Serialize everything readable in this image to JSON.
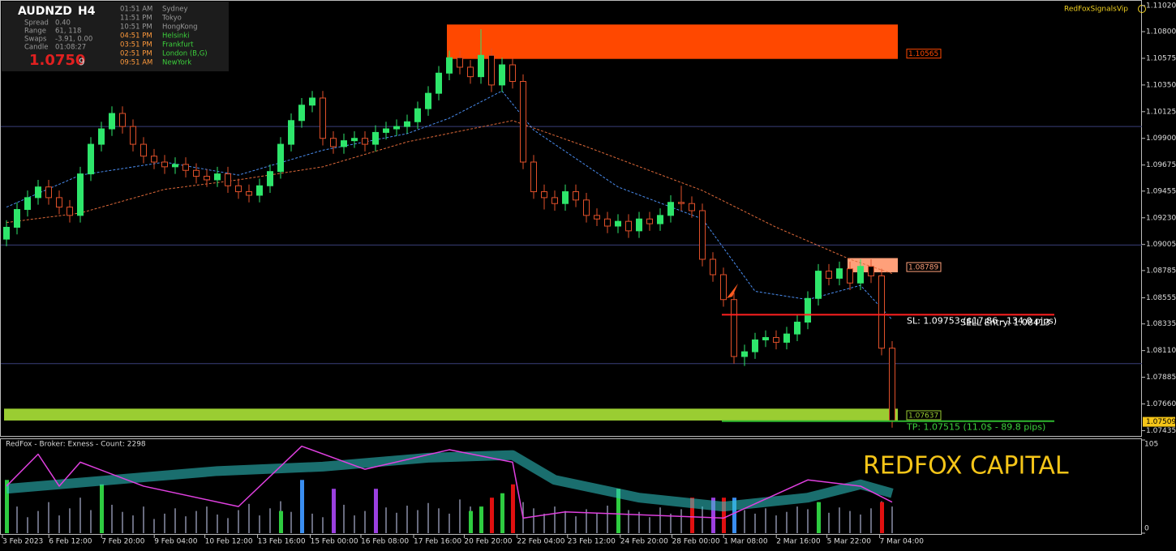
{
  "chart_data": {
    "type": "candlestick",
    "symbol": "AUDNZD",
    "timeframe": "H4",
    "watermark": "RedFoxSignalsVip",
    "brand": "REDFOX CAPITAL",
    "ylim": [
      1.0739,
      1.1106
    ],
    "yticks": [
      {
        "value": 1.1102,
        "label": "1.11020"
      },
      {
        "value": 1.108,
        "label": "1.10800"
      },
      {
        "value": 1.10575,
        "label": "1.10575"
      },
      {
        "value": 1.1035,
        "label": "1.10350"
      },
      {
        "value": 1.10125,
        "label": "1.10125"
      },
      {
        "value": 1.099,
        "label": "1.09900"
      },
      {
        "value": 1.09675,
        "label": "1.09675"
      },
      {
        "value": 1.09455,
        "label": "1.09455"
      },
      {
        "value": 1.0923,
        "label": "1.09230"
      },
      {
        "value": 1.09005,
        "label": "1.09005"
      },
      {
        "value": 1.08785,
        "label": "1.08785"
      },
      {
        "value": 1.08555,
        "label": "1.08555"
      },
      {
        "value": 1.08335,
        "label": "1.08335"
      },
      {
        "value": 1.0811,
        "label": "1.08110"
      },
      {
        "value": 1.07885,
        "label": "1.07885"
      },
      {
        "value": 1.0766,
        "label": "1.07660"
      },
      {
        "value": 1.07435,
        "label": "1.07435"
      }
    ],
    "levels": [
      1.1,
      1.09,
      1.08
    ],
    "current_price": {
      "value": 1.07509,
      "label": "1.07509"
    },
    "xticks": [
      {
        "value": 0,
        "label": "3 Feb 2023"
      },
      {
        "value": 4.4,
        "label": "6 Feb 12:00"
      },
      {
        "value": 9.4,
        "label": "7 Feb 20:00"
      },
      {
        "value": 14.4,
        "label": "9 Feb 04:00"
      },
      {
        "value": 19.2,
        "label": "10 Feb 12:00"
      },
      {
        "value": 24.2,
        "label": "13 Feb 16:00"
      },
      {
        "value": 29.2,
        "label": "15 Feb 00:00"
      },
      {
        "value": 34,
        "label": "16 Feb 08:00"
      },
      {
        "value": 39,
        "label": "17 Feb 16:00"
      },
      {
        "value": 43.8,
        "label": "20 Feb 20:00"
      },
      {
        "value": 48.8,
        "label": "22 Feb 04:00"
      },
      {
        "value": 53.6,
        "label": "23 Feb 12:00"
      },
      {
        "value": 58.6,
        "label": "24 Feb 20:00"
      },
      {
        "value": 63.5,
        "label": "28 Feb 00:00"
      },
      {
        "value": 68.4,
        "label": "1 Mar 08:00"
      },
      {
        "value": 73.4,
        "label": "2 Mar 16:00"
      },
      {
        "value": 78.2,
        "label": "5 Mar 22:00"
      },
      {
        "value": 83.2,
        "label": "7 Mar 04:00"
      }
    ],
    "colors": {
      "up": "#2ee66b",
      "down": "#e0502a"
    },
    "candles": [
      [
        1.0905,
        1.0921,
        1.0899,
        1.0915
      ],
      [
        1.0915,
        1.0936,
        1.0909,
        1.093
      ],
      [
        1.093,
        1.0946,
        1.0924,
        1.094
      ],
      [
        1.094,
        1.0955,
        1.0934,
        1.0949
      ],
      [
        1.0949,
        1.0955,
        1.0934,
        1.094
      ],
      [
        1.094,
        1.0946,
        1.0926,
        1.0932
      ],
      [
        1.0932,
        1.0938,
        1.0919,
        1.0925
      ],
      [
        1.0925,
        1.0966,
        1.0919,
        1.096
      ],
      [
        1.096,
        1.0991,
        1.0954,
        1.0985
      ],
      [
        1.0985,
        1.1004,
        1.0979,
        1.0998
      ],
      [
        1.0998,
        1.1017,
        1.0992,
        1.1011
      ],
      [
        1.1011,
        1.1017,
        1.0994,
        1.1
      ],
      [
        1.1,
        1.1006,
        1.0979,
        1.0985
      ],
      [
        1.0985,
        1.0991,
        1.0969,
        1.0975
      ],
      [
        1.0975,
        1.0981,
        1.0964,
        1.097
      ],
      [
        1.097,
        1.0976,
        1.096,
        1.0966
      ],
      [
        1.0966,
        1.0974,
        1.096,
        1.0968
      ],
      [
        1.0968,
        1.0974,
        1.0957,
        1.0963
      ],
      [
        1.0963,
        1.0969,
        1.0952,
        1.0958
      ],
      [
        1.0958,
        1.0964,
        1.0949,
        1.0955
      ],
      [
        1.0955,
        1.0966,
        1.0949,
        1.096
      ],
      [
        1.096,
        1.0966,
        1.0944,
        1.095
      ],
      [
        1.095,
        1.0956,
        1.0939,
        1.0945
      ],
      [
        1.0945,
        1.0951,
        1.0936,
        1.0942
      ],
      [
        1.0942,
        1.0956,
        1.0936,
        1.095
      ],
      [
        1.095,
        1.0968,
        1.0944,
        1.0962
      ],
      [
        1.0962,
        1.0991,
        1.0956,
        1.0985
      ],
      [
        1.0985,
        1.1011,
        1.0979,
        1.1005
      ],
      [
        1.1005,
        1.1024,
        1.0999,
        1.1018
      ],
      [
        1.1018,
        1.103,
        1.1012,
        1.1024
      ],
      [
        1.1024,
        1.103,
        1.0984,
        1.099
      ],
      [
        1.099,
        1.0996,
        1.0977,
        1.0983
      ],
      [
        1.0983,
        1.0994,
        1.0977,
        1.0988
      ],
      [
        1.0988,
        1.0996,
        1.0982,
        1.099
      ],
      [
        1.099,
        1.0996,
        1.0979,
        1.0985
      ],
      [
        1.0985,
        1.1001,
        1.0979,
        1.0995
      ],
      [
        1.0995,
        1.1004,
        1.0989,
        1.0998
      ],
      [
        1.0998,
        1.1006,
        1.0992,
        1.1
      ],
      [
        1.1,
        1.101,
        1.0994,
        1.1004
      ],
      [
        1.1004,
        1.1021,
        1.0998,
        1.1015
      ],
      [
        1.1015,
        1.1034,
        1.1009,
        1.1028
      ],
      [
        1.1028,
        1.1051,
        1.1022,
        1.1045
      ],
      [
        1.1045,
        1.1064,
        1.1039,
        1.1058
      ],
      [
        1.1058,
        1.1064,
        1.1044,
        1.105
      ],
      [
        1.105,
        1.1056,
        1.1036,
        1.1042
      ],
      [
        1.1042,
        1.1082,
        1.1036,
        1.106
      ],
      [
        1.106,
        1.1066,
        1.1029,
        1.1035
      ],
      [
        1.1035,
        1.1058,
        1.1029,
        1.1052
      ],
      [
        1.1052,
        1.1058,
        1.1032,
        1.1038
      ],
      [
        1.1038,
        1.1044,
        1.0964,
        1.097
      ],
      [
        1.097,
        1.0976,
        1.0939,
        1.0945
      ],
      [
        1.0945,
        1.0951,
        1.093,
        1.094
      ],
      [
        1.094,
        1.0946,
        1.0929,
        1.0935
      ],
      [
        1.0935,
        1.0951,
        1.0929,
        1.0945
      ],
      [
        1.0945,
        1.0951,
        1.0932,
        1.0938
      ],
      [
        1.0938,
        1.0944,
        1.0919,
        1.0925
      ],
      [
        1.0925,
        1.0931,
        1.0916,
        1.0922
      ],
      [
        1.0922,
        1.0928,
        1.091,
        1.0916
      ],
      [
        1.0916,
        1.0926,
        1.091,
        1.092
      ],
      [
        1.092,
        1.0926,
        1.0906,
        1.0912
      ],
      [
        1.0912,
        1.0928,
        1.0906,
        1.0922
      ],
      [
        1.0922,
        1.0928,
        1.0912,
        1.0918
      ],
      [
        1.0918,
        1.0931,
        1.0912,
        1.0925
      ],
      [
        1.0925,
        1.0942,
        1.0919,
        1.0936
      ],
      [
        1.0936,
        1.095,
        1.0929,
        1.0935
      ],
      [
        1.0935,
        1.0941,
        1.0923,
        1.0929
      ],
      [
        1.0929,
        1.0935,
        1.0882,
        1.0888
      ],
      [
        1.0888,
        1.0894,
        1.0869,
        1.0875
      ],
      [
        1.0875,
        1.0881,
        1.0848,
        1.0854
      ],
      [
        1.0854,
        1.086,
        1.08,
        1.0806
      ],
      [
        1.0806,
        1.0816,
        1.0798,
        1.081
      ],
      [
        1.081,
        1.0826,
        1.0804,
        1.082
      ],
      [
        1.082,
        1.0828,
        1.0814,
        1.0822
      ],
      [
        1.0822,
        1.0828,
        1.0812,
        1.0818
      ],
      [
        1.0818,
        1.0831,
        1.0812,
        1.0825
      ],
      [
        1.0825,
        1.0841,
        1.0819,
        1.0835
      ],
      [
        1.0835,
        1.0861,
        1.0829,
        1.0855
      ],
      [
        1.0855,
        1.0884,
        1.0849,
        1.0878
      ],
      [
        1.0878,
        1.0884,
        1.0866,
        1.0872
      ],
      [
        1.0872,
        1.0886,
        1.0866,
        1.088
      ],
      [
        1.088,
        1.0886,
        1.0862,
        1.0868
      ],
      [
        1.0868,
        1.0888,
        1.0862,
        1.0882
      ],
      [
        1.0882,
        1.0888,
        1.0868,
        1.0874
      ],
      [
        1.0874,
        1.088,
        1.0807,
        1.0813
      ],
      [
        1.0813,
        1.0819,
        1.0746,
        1.0752
      ]
    ],
    "ma_fast": {
      "color": "#4a8df0",
      "x": [
        0,
        7,
        15,
        22,
        30,
        38,
        42,
        47,
        50,
        58,
        66,
        71,
        76,
        81,
        84
      ],
      "values": [
        1.0932,
        1.0959,
        1.097,
        1.0959,
        1.098,
        1.0994,
        1.1007,
        1.103,
        1.0997,
        1.0949,
        1.0922,
        1.0861,
        1.0854,
        1.0866,
        1.0837
      ]
    },
    "ma_slow": {
      "color": "#e06a3a",
      "x": [
        0,
        7,
        15,
        22,
        30,
        38,
        48,
        55,
        66,
        73,
        80,
        84
      ],
      "values": [
        1.0919,
        1.0927,
        1.0947,
        1.0955,
        1.0966,
        1.0987,
        1.1005,
        1.0983,
        1.0946,
        1.0915,
        1.0888,
        1.0876
      ]
    },
    "zones": [
      {
        "top": 1.1086,
        "bottom": 1.1057,
        "from": 42,
        "color": "#ff4800",
        "label": "1.10565"
      },
      {
        "top": 1.0889,
        "bottom": 1.0877,
        "from": 80,
        "color": "#ffa07a",
        "label": "1.08789"
      },
      {
        "top": 1.0762,
        "bottom": 1.0752,
        "from": 0,
        "color": "#9acd32",
        "label": "1.07637"
      }
    ],
    "trade_lines": [
      {
        "price": 1.08413,
        "from": 68,
        "color": "#ff2020",
        "labels": [
          "SL: 1.09753 ($17.86 - 134.0 pips)",
          "SELL Entry: 1.08413"
        ]
      },
      {
        "price": 1.07515,
        "from": 68,
        "color": "#2fb82f",
        "labels": [
          "TP: 1.07515 (11.0$ - 89.8 pips)"
        ]
      }
    ],
    "info_panel": {
      "rows": [
        [
          "Spread",
          "0.40"
        ],
        [
          "Range",
          "61, 118"
        ],
        [
          "Swaps",
          "-3.91, 0.00"
        ],
        [
          "Candle",
          "01:08:27"
        ]
      ],
      "price_main": "1.0750",
      "price_last": "9",
      "clocks": [
        [
          "01:51 AM",
          "Sydney"
        ],
        [
          "11:51 PM",
          "Tokyo"
        ],
        [
          "10:51 PM",
          "HongKong"
        ],
        [
          "04:51 PM",
          "Helsinki"
        ],
        [
          "03:51 PM",
          "Frankfurt"
        ],
        [
          "02:51 PM",
          "London  (B,G)"
        ],
        [
          "09:51 AM",
          "NewYork"
        ]
      ]
    },
    "indicator": {
      "title": "RedFox -  Broker: Exness - Count: 2298",
      "ylim": [
        0,
        105
      ],
      "yticks": [
        105,
        0
      ],
      "volume": [
        22,
        30,
        18,
        25,
        35,
        20,
        28,
        40,
        26,
        18,
        32,
        24,
        20,
        30,
        16,
        22,
        28,
        19,
        25,
        30,
        21,
        17,
        26,
        33,
        20,
        28,
        36,
        24,
        30,
        22,
        18,
        27,
        32,
        20,
        25,
        19,
        29,
        23,
        31,
        26,
        34,
        28,
        22,
        38,
        30,
        26,
        33,
        24,
        40,
        35,
        28,
        22,
        30,
        25,
        19,
        27,
        23,
        31,
        20,
        26,
        24,
        18,
        29,
        22,
        27,
        33,
        30,
        25,
        38,
        34,
        26,
        22,
        28,
        20,
        24,
        30,
        27,
        35,
        23,
        29,
        25,
        21,
        28,
        36,
        30
      ],
      "bars": [
        {
          "x": 0,
          "value": 60,
          "color": "#2ecc40"
        },
        {
          "x": 9,
          "value": 55,
          "color": "#2ecc40"
        },
        {
          "x": 26,
          "value": 25,
          "color": "#2ecc40"
        },
        {
          "x": 28,
          "value": 60,
          "color": "#3a8ef0"
        },
        {
          "x": 31,
          "value": 50,
          "color": "#9b40e0"
        },
        {
          "x": 35,
          "value": 50,
          "color": "#9b40e0"
        },
        {
          "x": 44,
          "value": 25,
          "color": "#2ecc40"
        },
        {
          "x": 45,
          "value": 30,
          "color": "#2ecc40"
        },
        {
          "x": 46,
          "value": 40,
          "color": "#e01010"
        },
        {
          "x": 47,
          "value": 45,
          "color": "#2ecc40"
        },
        {
          "x": 48,
          "value": 55,
          "color": "#e01010"
        },
        {
          "x": 58,
          "value": 50,
          "color": "#2ecc40"
        },
        {
          "x": 65,
          "value": 40,
          "color": "#e01010"
        },
        {
          "x": 67,
          "value": 40,
          "color": "#9b40e0"
        },
        {
          "x": 68,
          "value": 40,
          "color": "#e01010"
        },
        {
          "x": 69,
          "value": 40,
          "color": "#3a8ef0"
        },
        {
          "x": 77,
          "value": 35,
          "color": "#2ecc40"
        },
        {
          "x": 83,
          "value": 35,
          "color": "#e01010"
        }
      ],
      "fast": {
        "color": "#e040e0",
        "x": [
          0,
          3,
          5,
          7,
          13,
          22,
          28,
          34,
          42,
          48,
          49,
          53,
          68,
          76,
          81,
          84
        ],
        "values": [
          53,
          89,
          53,
          80,
          53,
          30,
          98,
          72,
          94,
          80,
          17,
          24,
          17,
          60,
          53,
          35
        ]
      },
      "slow": {
        "color": "#30c8c8",
        "x": [
          0,
          10,
          20,
          30,
          40,
          48,
          52,
          60,
          68,
          76,
          81,
          84
        ],
        "values": [
          50,
          60,
          70,
          75,
          85,
          88,
          60,
          40,
          30,
          40,
          55,
          45
        ]
      }
    }
  }
}
